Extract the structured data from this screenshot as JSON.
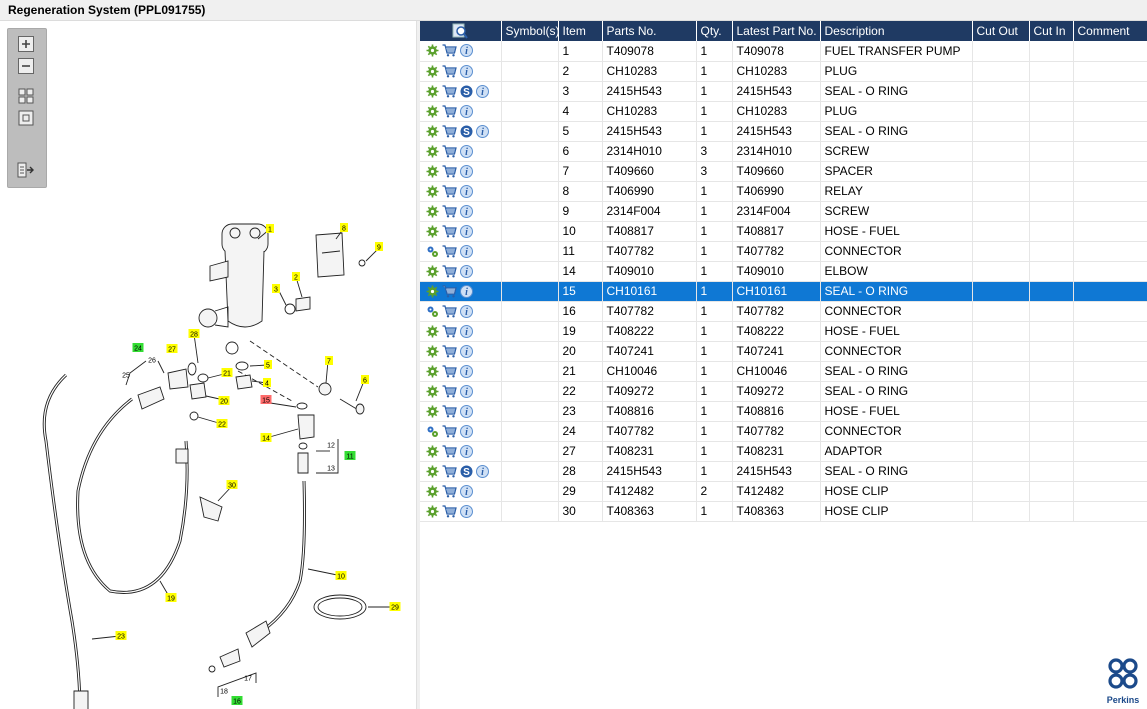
{
  "window": {
    "title": "Regeneration System (PPL091755)"
  },
  "toolbar": {
    "tools": [
      "zoom-in-icon",
      "zoom-out-icon",
      "fit-grid-icon",
      "reset-view-icon",
      "export-icon"
    ]
  },
  "diagram": {
    "callouts": [
      {
        "label": "1",
        "kind": "yellow"
      },
      {
        "label": "8",
        "kind": "yellow"
      },
      {
        "label": "9",
        "kind": "yellow"
      },
      {
        "label": "3",
        "kind": "yellow"
      },
      {
        "label": "2",
        "kind": "yellow"
      },
      {
        "label": "28",
        "kind": "yellow"
      },
      {
        "label": "27",
        "kind": "yellow"
      },
      {
        "label": "24",
        "kind": "green"
      },
      {
        "label": "26",
        "kind": "plain"
      },
      {
        "label": "25",
        "kind": "plain"
      },
      {
        "label": "5",
        "kind": "yellow"
      },
      {
        "label": "21",
        "kind": "yellow"
      },
      {
        "label": "4",
        "kind": "yellow"
      },
      {
        "label": "7",
        "kind": "yellow"
      },
      {
        "label": "6",
        "kind": "yellow"
      },
      {
        "label": "20",
        "kind": "yellow"
      },
      {
        "label": "15",
        "kind": "red"
      },
      {
        "label": "22",
        "kind": "yellow"
      },
      {
        "label": "14",
        "kind": "yellow"
      },
      {
        "label": "12",
        "kind": "plain"
      },
      {
        "label": "11",
        "kind": "green"
      },
      {
        "label": "13",
        "kind": "plain"
      },
      {
        "label": "30",
        "kind": "yellow"
      },
      {
        "label": "10",
        "kind": "yellow"
      },
      {
        "label": "19",
        "kind": "yellow"
      },
      {
        "label": "29",
        "kind": "yellow"
      },
      {
        "label": "23",
        "kind": "yellow"
      },
      {
        "label": "17",
        "kind": "plain"
      },
      {
        "label": "18",
        "kind": "plain"
      },
      {
        "label": "16",
        "kind": "green"
      }
    ]
  },
  "table": {
    "columns": [
      "",
      "Symbol(s)",
      "Item",
      "Parts No.",
      "Qty.",
      "Latest Part No.",
      "Description",
      "Cut Out",
      "Cut In",
      "Comment"
    ],
    "header_icon": "search-parts-icon",
    "rows": [
      {
        "gear": "gear-icon",
        "s": false,
        "item": "1",
        "part": "T409078",
        "qty": "1",
        "latest": "T409078",
        "desc": "FUEL TRANSFER PUMP",
        "selected": false
      },
      {
        "gear": "gear-icon",
        "s": false,
        "item": "2",
        "part": "CH10283",
        "qty": "1",
        "latest": "CH10283",
        "desc": "PLUG",
        "selected": false
      },
      {
        "gear": "gear-icon",
        "s": true,
        "item": "3",
        "part": "2415H543",
        "qty": "1",
        "latest": "2415H543",
        "desc": "SEAL - O RING",
        "selected": false
      },
      {
        "gear": "gear-icon",
        "s": false,
        "item": "4",
        "part": "CH10283",
        "qty": "1",
        "latest": "CH10283",
        "desc": "PLUG",
        "selected": false
      },
      {
        "gear": "gear-icon",
        "s": true,
        "item": "5",
        "part": "2415H543",
        "qty": "1",
        "latest": "2415H543",
        "desc": "SEAL - O RING",
        "selected": false
      },
      {
        "gear": "gear-icon",
        "s": false,
        "item": "6",
        "part": "2314H010",
        "qty": "3",
        "latest": "2314H010",
        "desc": "SCREW",
        "selected": false
      },
      {
        "gear": "gear-icon",
        "s": false,
        "item": "7",
        "part": "T409660",
        "qty": "3",
        "latest": "T409660",
        "desc": "SPACER",
        "selected": false
      },
      {
        "gear": "gear-icon",
        "s": false,
        "item": "8",
        "part": "T406990",
        "qty": "1",
        "latest": "T406990",
        "desc": "RELAY",
        "selected": false
      },
      {
        "gear": "gear-icon",
        "s": false,
        "item": "9",
        "part": "2314F004",
        "qty": "1",
        "latest": "2314F004",
        "desc": "SCREW",
        "selected": false
      },
      {
        "gear": "gear-icon",
        "s": false,
        "item": "10",
        "part": "T408817",
        "qty": "1",
        "latest": "T408817",
        "desc": "HOSE - FUEL",
        "selected": false
      },
      {
        "gear": "gears-blue-icon",
        "s": false,
        "item": "11",
        "part": "T407782",
        "qty": "1",
        "latest": "T407782",
        "desc": "CONNECTOR",
        "selected": false
      },
      {
        "gear": "gear-icon",
        "s": false,
        "item": "14",
        "part": "T409010",
        "qty": "1",
        "latest": "T409010",
        "desc": "ELBOW",
        "selected": false
      },
      {
        "gear": "gear-icon",
        "s": false,
        "item": "15",
        "part": "CH10161",
        "qty": "1",
        "latest": "CH10161",
        "desc": "SEAL - O RING",
        "selected": true
      },
      {
        "gear": "gears-blue-icon",
        "s": false,
        "item": "16",
        "part": "T407782",
        "qty": "1",
        "latest": "T407782",
        "desc": "CONNECTOR",
        "selected": false
      },
      {
        "gear": "gear-icon",
        "s": false,
        "item": "19",
        "part": "T408222",
        "qty": "1",
        "latest": "T408222",
        "desc": "HOSE - FUEL",
        "selected": false
      },
      {
        "gear": "gear-icon",
        "s": false,
        "item": "20",
        "part": "T407241",
        "qty": "1",
        "latest": "T407241",
        "desc": "CONNECTOR",
        "selected": false
      },
      {
        "gear": "gear-icon",
        "s": false,
        "item": "21",
        "part": "CH10046",
        "qty": "1",
        "latest": "CH10046",
        "desc": "SEAL - O RING",
        "selected": false
      },
      {
        "gear": "gear-icon",
        "s": false,
        "item": "22",
        "part": "T409272",
        "qty": "1",
        "latest": "T409272",
        "desc": "SEAL - O RING",
        "selected": false
      },
      {
        "gear": "gear-icon",
        "s": false,
        "item": "23",
        "part": "T408816",
        "qty": "1",
        "latest": "T408816",
        "desc": "HOSE - FUEL",
        "selected": false
      },
      {
        "gear": "gears-blue-icon",
        "s": false,
        "item": "24",
        "part": "T407782",
        "qty": "1",
        "latest": "T407782",
        "desc": "CONNECTOR",
        "selected": false
      },
      {
        "gear": "gear-icon",
        "s": false,
        "item": "27",
        "part": "T408231",
        "qty": "1",
        "latest": "T408231",
        "desc": "ADAPTOR",
        "selected": false
      },
      {
        "gear": "gear-icon",
        "s": true,
        "item": "28",
        "part": "2415H543",
        "qty": "1",
        "latest": "2415H543",
        "desc": "SEAL - O RING",
        "selected": false
      },
      {
        "gear": "gear-icon",
        "s": false,
        "item": "29",
        "part": "T412482",
        "qty": "2",
        "latest": "T412482",
        "desc": "HOSE CLIP",
        "selected": false
      },
      {
        "gear": "gear-icon",
        "s": false,
        "item": "30",
        "part": "T408363",
        "qty": "1",
        "latest": "T408363",
        "desc": "HOSE CLIP",
        "selected": false
      }
    ]
  },
  "colors": {
    "header_bg": "#1f3a63",
    "selected_row": "#0f78d4",
    "callout_yellow": "#ffff00",
    "callout_green": "#33dd33",
    "callout_red": "#ff6b6b",
    "brand": "#1c4a8a"
  },
  "logo": {
    "text": "Perkins",
    "icon": "perkins-logo-icon"
  }
}
